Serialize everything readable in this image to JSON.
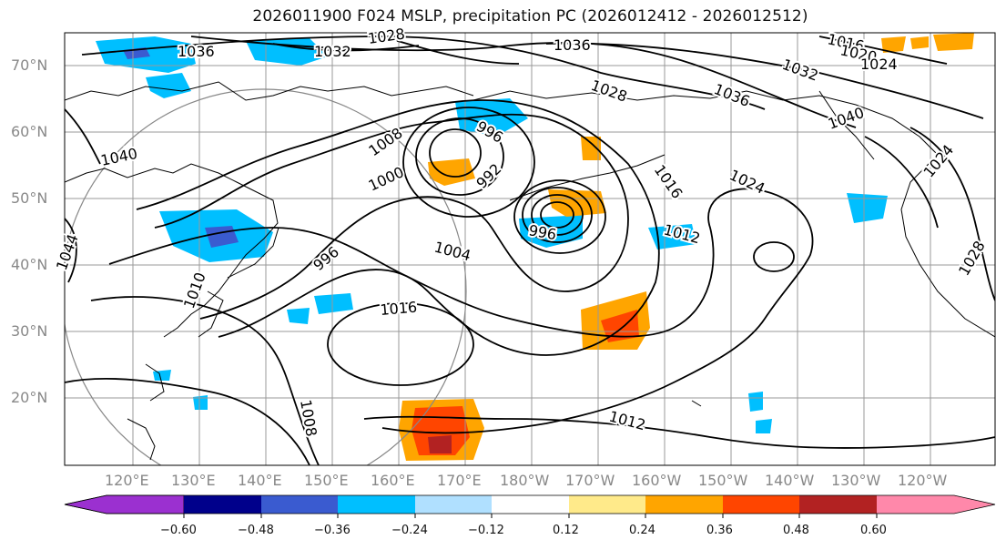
{
  "title": "2026011900 F024 MSLP, precipitation PC (2026012412 - 2026012512)",
  "lat_labels": [
    "70°N",
    "60°N",
    "50°N",
    "40°N",
    "30°N",
    "20°N"
  ],
  "lon_labels": [
    "120°E",
    "130°E",
    "140°E",
    "150°E",
    "160°E",
    "170°E",
    "180°W",
    "170°W",
    "160°W",
    "150°W",
    "140°W",
    "130°W",
    "120°W"
  ],
  "contour_labels": [
    "1028",
    "1036",
    "1032",
    "1036",
    "1016",
    "1020",
    "1024",
    "1032",
    "1028",
    "1036",
    "1040",
    "1040",
    "996",
    "1008",
    "992",
    "1000",
    "1016",
    "1024",
    "1024",
    "1012",
    "996",
    "1004",
    "996",
    "1016",
    "1008",
    "1012",
    "1028",
    "1044",
    "1010"
  ],
  "colorbar": {
    "ticks": [
      "−0.60",
      "−0.48",
      "−0.36",
      "−0.24",
      "−0.12",
      "0.12",
      "0.24",
      "0.36",
      "0.48",
      "0.60"
    ],
    "colors": [
      "#9b30d0",
      "#00008b",
      "#3a5bd0",
      "#00bfff",
      "#b0e0ff",
      "#ffffff",
      "#ffea8a",
      "#ffa500",
      "#ff4500",
      "#b22222",
      "#ff88aa"
    ]
  },
  "colors": {
    "land_outline": "#000000",
    "grid": "#999999",
    "isobar": "#000000"
  }
}
